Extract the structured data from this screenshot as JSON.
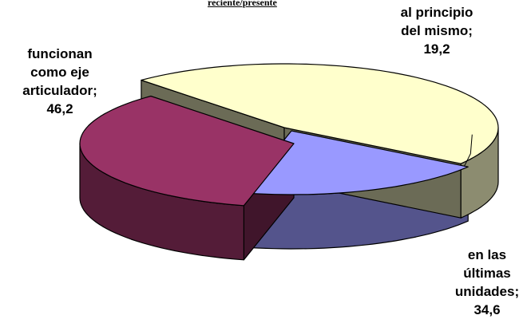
{
  "chart_data": {
    "type": "pie",
    "title": "reciente/presente",
    "slices": [
      {
        "label_lines": [
          "al principio",
          "del mismo;"
        ],
        "value": 19.2,
        "value_text": "19,2",
        "color": "#9999ff"
      },
      {
        "label_lines": [
          "en las",
          "últimas",
          "unidades;"
        ],
        "value": 34.6,
        "value_text": "34,6",
        "color": "#993366"
      },
      {
        "label_lines": [
          "funcionan",
          "como eje",
          "articulador;"
        ],
        "value": 46.2,
        "value_text": "46,2",
        "color": "#ffffcc"
      }
    ]
  }
}
